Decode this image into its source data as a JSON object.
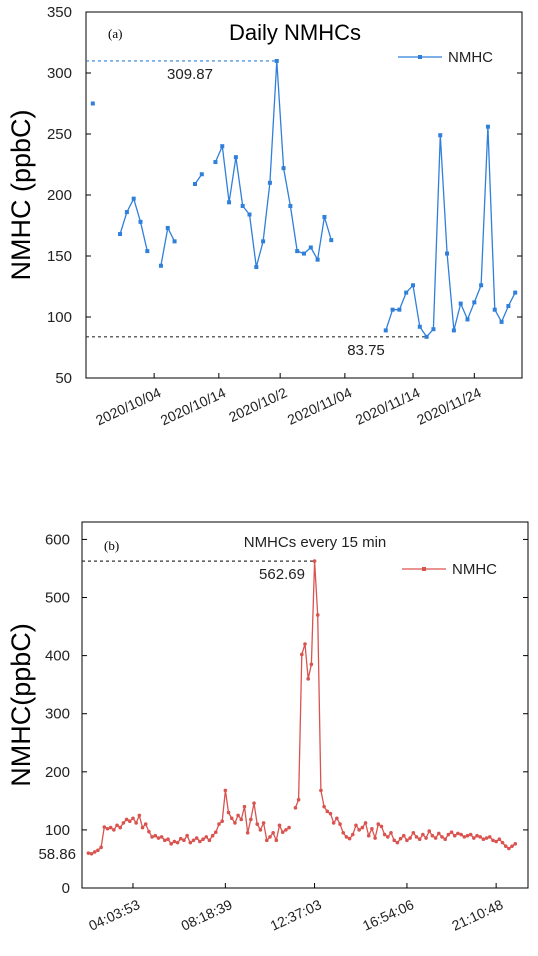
{
  "chart_data": [
    {
      "type": "line",
      "panel_label": "(a)",
      "title": "Daily NMHCs",
      "ylabel": "NMHC (ppbC)",
      "ylim": [
        50,
        350
      ],
      "yticks": [
        50,
        100,
        150,
        200,
        250,
        300,
        350
      ],
      "xtick_labels": [
        "2020/10/04",
        "2020/10/14",
        "2020/10/2",
        "2020/11/04",
        "2020/11/14",
        "2020/11/24"
      ],
      "legend": "NMHC",
      "legend_position": "top-right",
      "color": "#2F7FDB",
      "max": {
        "value": 309.87,
        "label": "309.87"
      },
      "min": {
        "value": 83.75,
        "label": "83.75"
      },
      "series": [
        {
          "name": "NMHC",
          "segments": [
            [
              [
                1,
                275
              ]
            ],
            [
              [
                5,
                168
              ],
              [
                6,
                186
              ],
              [
                7,
                197
              ],
              [
                8,
                178
              ],
              [
                9,
                154
              ]
            ],
            [
              [
                11,
                142
              ],
              [
                12,
                173
              ],
              [
                13,
                162
              ]
            ],
            [
              [
                16,
                209
              ],
              [
                17,
                217
              ]
            ],
            [
              [
                19,
                227
              ],
              [
                20,
                240
              ],
              [
                21,
                194
              ],
              [
                22,
                231
              ],
              [
                23,
                191
              ],
              [
                24,
                184
              ],
              [
                25,
                141
              ],
              [
                26,
                162
              ],
              [
                27,
                210
              ],
              [
                28,
                309.87
              ],
              [
                29,
                222
              ],
              [
                30,
                191
              ],
              [
                31,
                154
              ],
              [
                32,
                152
              ],
              [
                33,
                157
              ],
              [
                34,
                147
              ],
              [
                35,
                182
              ],
              [
                36,
                163
              ]
            ]
          ]
        },
        {
          "name": "NMHC",
          "segments": [
            [
              [
                44,
                89
              ],
              [
                45,
                106
              ],
              [
                46,
                106
              ],
              [
                47,
                120
              ],
              [
                48,
                126
              ],
              [
                49,
                92
              ],
              [
                50,
                83.75
              ],
              [
                51,
                90
              ],
              [
                52,
                249
              ],
              [
                53,
                152
              ],
              [
                54,
                89
              ],
              [
                55,
                111
              ],
              [
                56,
                98
              ],
              [
                57,
                112
              ],
              [
                58,
                126
              ],
              [
                59,
                256
              ],
              [
                60,
                106
              ],
              [
                61,
                96
              ],
              [
                62,
                109
              ],
              [
                63,
                120
              ]
            ]
          ]
        }
      ],
      "xlim": [
        0,
        64
      ]
    },
    {
      "type": "line",
      "panel_label": "(b)",
      "title": "NMHCs every 15 min",
      "ylabel": "NMHC(ppbC)",
      "ylim": [
        0,
        630
      ],
      "yticks": [
        0,
        100,
        200,
        300,
        400,
        500,
        600
      ],
      "ytick_labels": [
        "0",
        "100",
        "200",
        "300",
        "400",
        "500",
        "600"
      ],
      "xtick_labels": [
        "04:03:53",
        "08:18:39",
        "12:37:03",
        "16:54:06",
        "21:10:48"
      ],
      "legend": "NMHC",
      "legend_position": "top-right",
      "color": "#D9534F",
      "max": {
        "value": 562.69,
        "label": "562.69"
      },
      "min": {
        "value": 58.86,
        "label": "58.86"
      },
      "series": [
        {
          "name": "NMHC",
          "segments": [
            [
              [
                0,
                60
              ],
              [
                1,
                58.86
              ],
              [
                2,
                62
              ],
              [
                3,
                65
              ],
              [
                4,
                70
              ],
              [
                5,
                105
              ],
              [
                6,
                102
              ],
              [
                7,
                104
              ],
              [
                8,
                100
              ],
              [
                9,
                108
              ],
              [
                10,
                104
              ],
              [
                11,
                112
              ],
              [
                12,
                118
              ],
              [
                13,
                115
              ],
              [
                14,
                120
              ],
              [
                15,
                112
              ],
              [
                16,
                125
              ],
              [
                17,
                104
              ],
              [
                18,
                110
              ],
              [
                19,
                97
              ],
              [
                20,
                88
              ],
              [
                21,
                90
              ],
              [
                22,
                86
              ],
              [
                23,
                88
              ],
              [
                24,
                82
              ],
              [
                25,
                84
              ],
              [
                26,
                76
              ],
              [
                27,
                80
              ],
              [
                28,
                78
              ],
              [
                29,
                85
              ],
              [
                30,
                82
              ],
              [
                31,
                90
              ],
              [
                32,
                78
              ],
              [
                33,
                82
              ],
              [
                34,
                86
              ],
              [
                35,
                80
              ],
              [
                36,
                84
              ],
              [
                37,
                88
              ],
              [
                38,
                82
              ],
              [
                39,
                90
              ],
              [
                40,
                96
              ],
              [
                41,
                110
              ],
              [
                42,
                115
              ],
              [
                43,
                168
              ],
              [
                44,
                130
              ],
              [
                45,
                120
              ],
              [
                46,
                112
              ],
              [
                47,
                125
              ],
              [
                48,
                118
              ],
              [
                49,
                140
              ],
              [
                50,
                95
              ],
              [
                51,
                118
              ],
              [
                52,
                146
              ],
              [
                53,
                110
              ],
              [
                54,
                100
              ],
              [
                55,
                112
              ],
              [
                56,
                82
              ],
              [
                57,
                88
              ],
              [
                58,
                95
              ],
              [
                59,
                82
              ],
              [
                60,
                108
              ],
              [
                61,
                96
              ],
              [
                62,
                100
              ],
              [
                63,
                104
              ]
            ],
            [
              [
                65,
                138
              ],
              [
                66,
                152
              ],
              [
                67,
                402
              ],
              [
                68,
                420
              ],
              [
                69,
                360
              ],
              [
                70,
                385
              ],
              [
                71,
                562.69
              ],
              [
                72,
                470
              ],
              [
                73,
                168
              ],
              [
                74,
                140
              ],
              [
                75,
                132
              ],
              [
                76,
                128
              ],
              [
                77,
                112
              ],
              [
                78,
                120
              ],
              [
                79,
                110
              ],
              [
                80,
                95
              ],
              [
                81,
                88
              ],
              [
                82,
                85
              ],
              [
                83,
                92
              ],
              [
                84,
                108
              ],
              [
                85,
                100
              ],
              [
                86,
                104
              ],
              [
                87,
                112
              ],
              [
                88,
                90
              ],
              [
                89,
                102
              ],
              [
                90,
                86
              ],
              [
                91,
                110
              ],
              [
                92,
                106
              ],
              [
                93,
                92
              ],
              [
                94,
                88
              ],
              [
                95,
                95
              ],
              [
                96,
                82
              ],
              [
                97,
                78
              ],
              [
                98,
                85
              ],
              [
                99,
                90
              ],
              [
                100,
                82
              ],
              [
                101,
                86
              ],
              [
                102,
                95
              ],
              [
                103,
                88
              ],
              [
                104,
                84
              ],
              [
                105,
                92
              ],
              [
                106,
                86
              ],
              [
                107,
                98
              ],
              [
                108,
                90
              ],
              [
                109,
                86
              ],
              [
                110,
                94
              ],
              [
                111,
                88
              ],
              [
                112,
                84
              ],
              [
                113,
                92
              ],
              [
                114,
                96
              ],
              [
                115,
                90
              ],
              [
                116,
                94
              ],
              [
                117,
                92
              ],
              [
                118,
                88
              ],
              [
                119,
                90
              ],
              [
                120,
                92
              ],
              [
                121,
                86
              ],
              [
                122,
                90
              ],
              [
                123,
                88
              ],
              [
                124,
                84
              ],
              [
                125,
                86
              ],
              [
                126,
                88
              ],
              [
                127,
                82
              ],
              [
                128,
                80
              ],
              [
                129,
                84
              ],
              [
                130,
                78
              ],
              [
                131,
                72
              ],
              [
                132,
                68
              ],
              [
                133,
                72
              ],
              [
                134,
                76
              ]
            ]
          ]
        }
      ],
      "xlim": [
        -2,
        138
      ]
    }
  ]
}
